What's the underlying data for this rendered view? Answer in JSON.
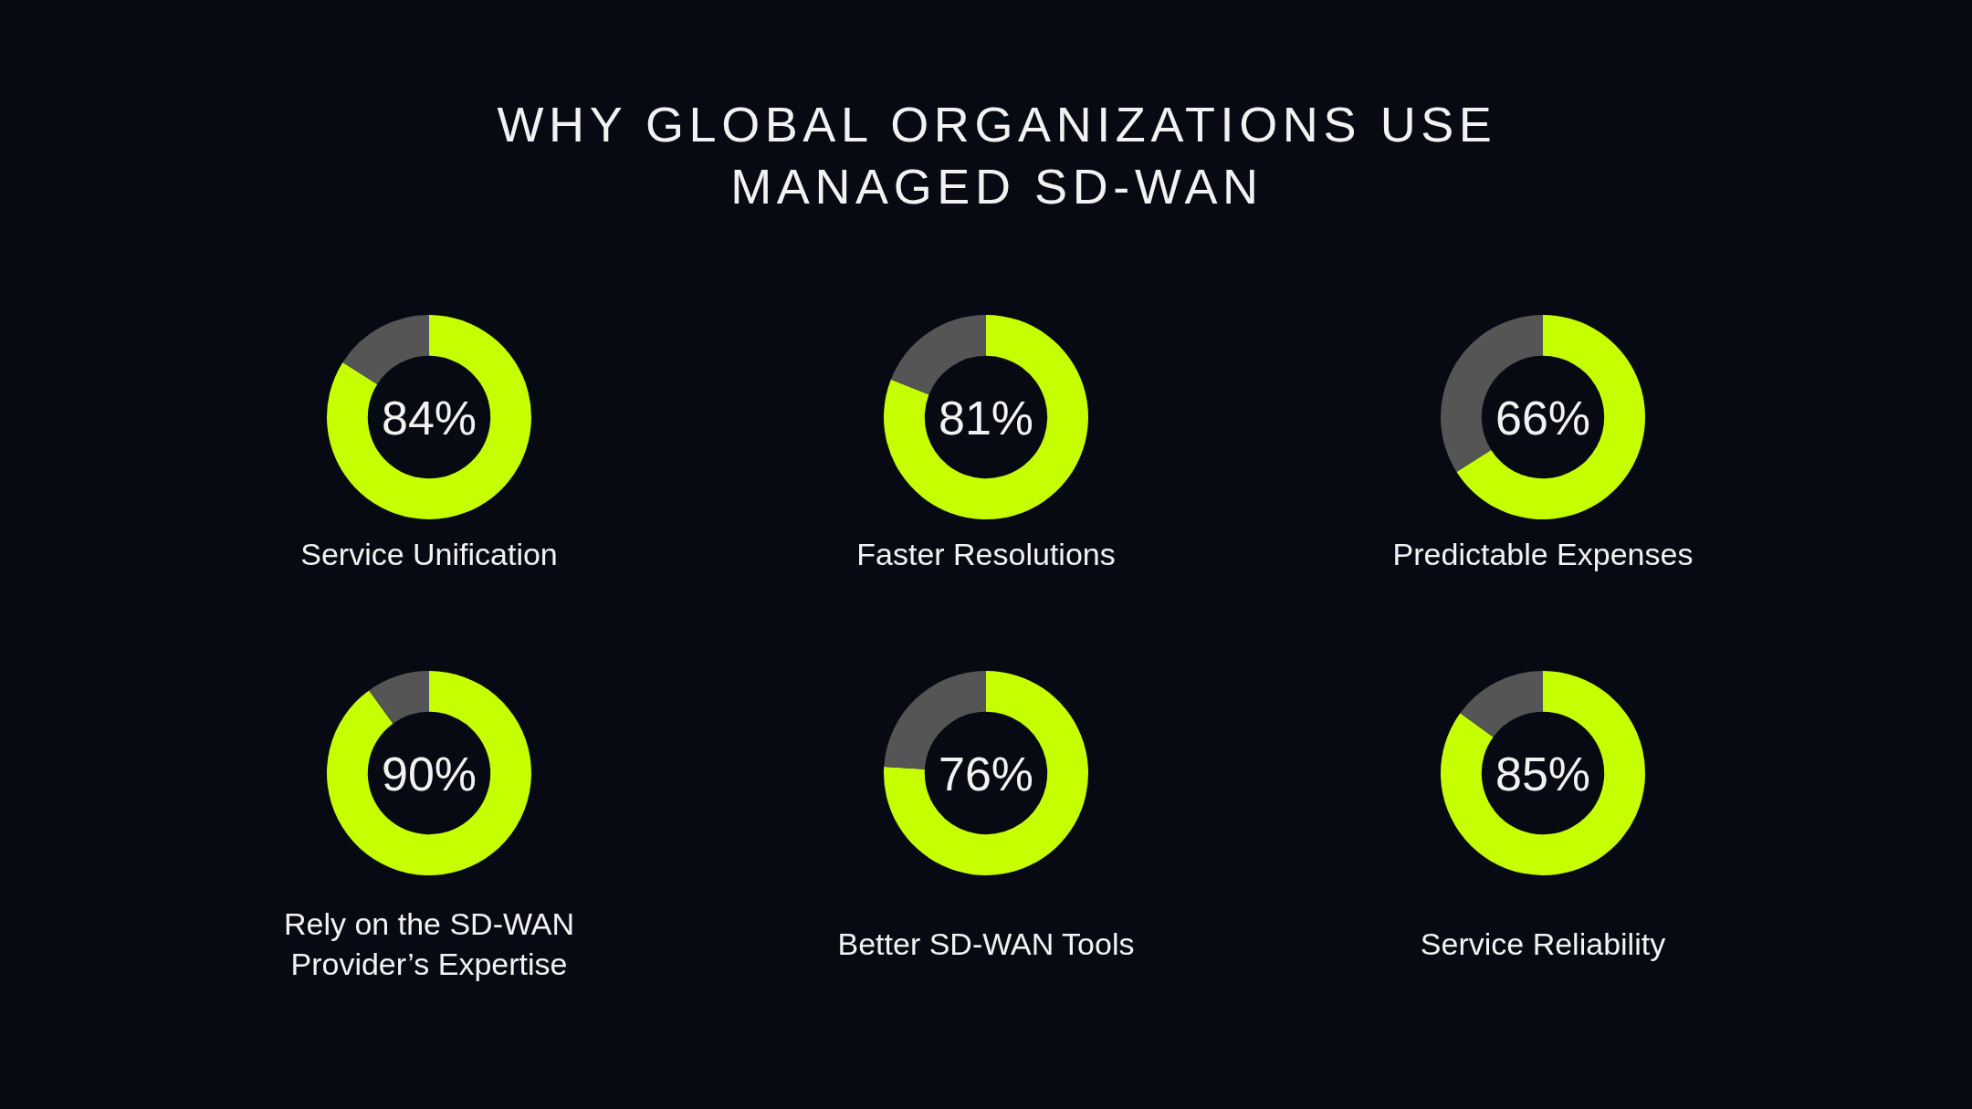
{
  "chart_data": [
    {
      "type": "other",
      "title": "WHY GLOBAL ORGANIZATIONS USE MANAGED SD-WAN"
    },
    {
      "type": "donut",
      "title": "Service Unification",
      "categories": [
        null,
        null
      ],
      "values": [
        84,
        16
      ],
      "colors": [
        "#c6ff00",
        "#555555"
      ],
      "value_labels": [
        "84%",
        null
      ]
    },
    {
      "type": "donut",
      "title": "Faster Resolutions",
      "categories": [
        null,
        null
      ],
      "values": [
        81,
        19
      ],
      "colors": [
        "#c6ff00",
        "#555555"
      ],
      "value_labels": [
        "81%",
        null
      ]
    },
    {
      "type": "donut",
      "title": "Predictable Expenses",
      "categories": [
        null,
        null
      ],
      "values": [
        66,
        34
      ],
      "colors": [
        "#c6ff00",
        "#555555"
      ],
      "value_labels": [
        "66%",
        null
      ]
    },
    {
      "type": "donut",
      "title": "Rely on the SD-WAN Provider’s Expertise",
      "categories": [
        null,
        null
      ],
      "values": [
        90,
        10
      ],
      "colors": [
        "#c6ff00",
        "#555555"
      ],
      "value_labels": [
        "90%",
        null
      ]
    },
    {
      "type": "donut",
      "title": "Better SD-WAN Tools",
      "categories": [
        null,
        null
      ],
      "values": [
        76,
        24
      ],
      "colors": [
        "#c6ff00",
        "#555555"
      ],
      "value_labels": [
        "76%",
        null
      ]
    },
    {
      "type": "donut",
      "title": "Service Reliability",
      "categories": [
        null,
        null
      ],
      "values": [
        85,
        15
      ],
      "colors": [
        "#c6ff00",
        "#555555"
      ],
      "value_labels": [
        "85%",
        null
      ]
    }
  ]
}
